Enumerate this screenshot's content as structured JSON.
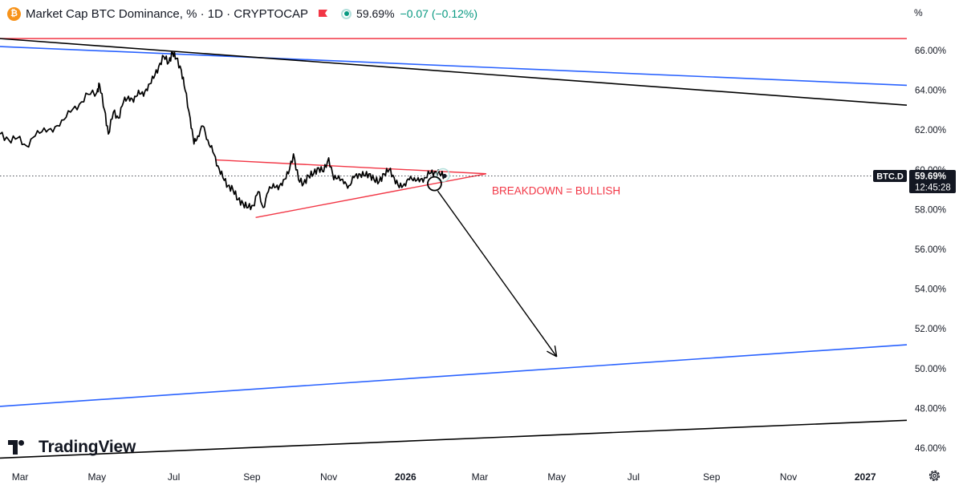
{
  "header": {
    "logo_glyph": "₿",
    "title": "Market Cap BTC Dominance, % · 1D · CRYPTOCAP",
    "price": "59.69%",
    "change": "−0.07 (−0.12%)",
    "change_color": "#089981",
    "unit": "%"
  },
  "brand": {
    "name": "TradingView"
  },
  "icons": {
    "logo": "bitcoin-icon",
    "flag": "flag-icon",
    "status": "market-status-icon",
    "settings": "gear-icon"
  },
  "colors": {
    "price_line": "#000000",
    "red": "#f23645",
    "blue": "#2962ff",
    "black_line": "#000000",
    "grid": "#ffffff"
  },
  "chart_data": {
    "type": "line",
    "title": "Market Cap BTC Dominance, % · 1D · CRYPTOCAP",
    "ylabel": "",
    "xlabel": "",
    "ylim": [
      45.5,
      67
    ],
    "y_ticks": [
      46,
      48,
      50,
      52,
      54,
      56,
      58,
      60,
      62,
      64,
      66
    ],
    "y_tick_labels": [
      "46.00%",
      "48.00%",
      "50.00%",
      "52.00%",
      "54.00%",
      "56.00%",
      "58.00%",
      "60.00%",
      "62.00%",
      "64.00%",
      "66.00%"
    ],
    "x_ticks": [
      "2025-03-01",
      "2025-05-01",
      "2025-07-01",
      "2025-09-01",
      "2025-11-01",
      "2026-01-01",
      "2026-03-01",
      "2026-05-01",
      "2026-07-01",
      "2026-09-01",
      "2026-11-01",
      "2027-01-01"
    ],
    "x_tick_labels": [
      "Mar",
      "May",
      "Jul",
      "Sep",
      "Nov",
      "2026",
      "Mar",
      "May",
      "Jul",
      "Sep",
      "Nov",
      "2027"
    ],
    "bold_x_ticks": [
      "2026",
      "2027"
    ],
    "xlim": [
      "2025-02-13",
      "2027-02-03"
    ],
    "series": [
      {
        "color": "#000000",
        "x": [
          "2025-02-13",
          "2025-02-20",
          "2025-02-27",
          "2025-03-06",
          "2025-03-13",
          "2025-03-20",
          "2025-03-27",
          "2025-04-03",
          "2025-04-10",
          "2025-04-17",
          "2025-04-24",
          "2025-05-01",
          "2025-05-03",
          "2025-05-07",
          "2025-05-10",
          "2025-05-14",
          "2025-05-18",
          "2025-05-22",
          "2025-05-26",
          "2025-05-30",
          "2025-06-03",
          "2025-06-07",
          "2025-06-11",
          "2025-06-15",
          "2025-06-19",
          "2025-06-23",
          "2025-06-27",
          "2025-06-30",
          "2025-07-03",
          "2025-07-07",
          "2025-07-10",
          "2025-07-14",
          "2025-07-17",
          "2025-07-20",
          "2025-07-24",
          "2025-07-28",
          "2025-08-01",
          "2025-08-05",
          "2025-08-09",
          "2025-08-13",
          "2025-08-17",
          "2025-08-21",
          "2025-08-25",
          "2025-08-29",
          "2025-09-02",
          "2025-09-06",
          "2025-09-10",
          "2025-09-14",
          "2025-09-18",
          "2025-09-22",
          "2025-09-26",
          "2025-09-30",
          "2025-10-04",
          "2025-10-08",
          "2025-10-12",
          "2025-10-16",
          "2025-10-20",
          "2025-10-24",
          "2025-10-28",
          "2025-11-01",
          "2025-11-05",
          "2025-11-09",
          "2025-11-13",
          "2025-11-17",
          "2025-11-21",
          "2025-11-25",
          "2025-11-29",
          "2025-12-03",
          "2025-12-07",
          "2025-12-11",
          "2025-12-15",
          "2025-12-19",
          "2025-12-23",
          "2025-12-27",
          "2025-12-31",
          "2026-01-04",
          "2026-01-08",
          "2026-01-12",
          "2026-01-16",
          "2026-01-20",
          "2026-01-24",
          "2026-01-28",
          "2026-02-01"
        ],
        "y": [
          61.8,
          61.5,
          61.6,
          61.2,
          61.7,
          62.1,
          61.9,
          62.5,
          62.9,
          63.3,
          63.8,
          63.9,
          64.3,
          63.0,
          61.8,
          62.9,
          62.6,
          63.4,
          63.7,
          63.4,
          64.0,
          63.7,
          64.3,
          64.6,
          65.2,
          65.7,
          65.4,
          65.9,
          65.6,
          65.0,
          64.0,
          62.6,
          61.3,
          61.7,
          62.2,
          61.5,
          60.9,
          60.2,
          59.6,
          59.2,
          59.0,
          58.5,
          58.3,
          58.1,
          58.2,
          58.9,
          58.1,
          58.9,
          59.3,
          59.0,
          59.5,
          59.8,
          60.8,
          59.5,
          59.3,
          59.7,
          59.8,
          60.1,
          59.9,
          60.6,
          59.5,
          59.7,
          59.3,
          59.2,
          59.6,
          59.8,
          59.7,
          59.8,
          59.5,
          59.4,
          59.8,
          60.0,
          59.6,
          59.1,
          59.3,
          59.5,
          59.6,
          59.4,
          59.6,
          59.8,
          59.9,
          59.8,
          59.69
        ]
      }
    ],
    "annotations": {
      "text": "BREAKDOWN = BULLISH",
      "text_color": "#f23645",
      "current_price_label": "59.69%",
      "current_price_symbol": "BTC.D",
      "countdown": "12:45:28",
      "current_value": 59.69,
      "horizontal_line_red": 66.6,
      "blue_upper": {
        "start": [
          "2025-02-13",
          66.2
        ],
        "end": [
          "2027-02-03",
          64.25
        ]
      },
      "black_upper": {
        "start": [
          "2025-02-13",
          66.6
        ],
        "end": [
          "2027-02-03",
          63.25
        ]
      },
      "blue_lower": {
        "start": [
          "2025-02-13",
          48.1
        ],
        "end": [
          "2027-02-03",
          51.2
        ]
      },
      "black_lower": {
        "start": [
          "2025-02-13",
          45.5
        ],
        "end": [
          "2027-02-03",
          47.4
        ]
      },
      "triangle_upper": {
        "start": [
          "2025-08-03",
          60.5
        ],
        "end": [
          "2026-03-06",
          59.8
        ]
      },
      "triangle_lower": {
        "start": [
          "2025-09-04",
          57.6
        ],
        "end": [
          "2026-03-06",
          59.8
        ]
      },
      "breakdown_point": [
        "2026-01-24",
        59.3
      ],
      "arrow_target": [
        "2026-05-01",
        50.6
      ]
    }
  }
}
